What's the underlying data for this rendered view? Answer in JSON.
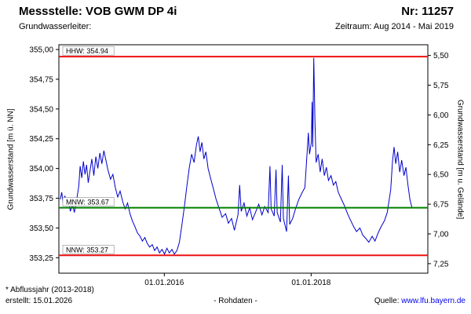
{
  "header": {
    "title": "Messstelle: VOB GWM DP 4i",
    "number_label": "Nr: 11257",
    "subtitle_left": "Grundwasserleiter:",
    "subtitle_right": "Zeitraum: Aug 2014 - Mai 2019"
  },
  "footer": {
    "note": "* Abflussjahr (2013-2018)",
    "created": "erstellt: 15.01.2026",
    "center": "- Rohdaten -",
    "source_label": "Quelle:",
    "source_link": "www.lfu.bayern.de"
  },
  "chart_data": {
    "type": "line",
    "title": "",
    "xlabel": "",
    "ylabel_left": "Grundwasserstand [m ü. NN]",
    "ylabel_right": "Grundwasserstand [m u. Gelände]",
    "grid": false,
    "legend": "none",
    "ylim_left": [
      353.12,
      355.04
    ],
    "right_axis_ground_elevation": 360.45,
    "x_domain": [
      "2014-07-25",
      "2019-08-05"
    ],
    "y_ticks_left": [
      [
        355.0,
        "355,00"
      ],
      [
        354.75,
        "354,75"
      ],
      [
        354.5,
        "354,50"
      ],
      [
        354.25,
        "354,25"
      ],
      [
        354.0,
        "354,00"
      ],
      [
        353.75,
        "353,75"
      ],
      [
        353.5,
        "353,50"
      ],
      [
        353.25,
        "353,25"
      ]
    ],
    "y_ticks_right": [
      [
        5.5,
        "5,50"
      ],
      [
        5.75,
        "5,75"
      ],
      [
        6.0,
        "6,00"
      ],
      [
        6.25,
        "6,25"
      ],
      [
        6.5,
        "6,50"
      ],
      [
        6.75,
        "6,75"
      ],
      [
        7.0,
        "7,00"
      ],
      [
        7.25,
        "7,25"
      ]
    ],
    "x_ticks": [
      {
        "date": "2016-01-01",
        "label": "01.01.2016"
      },
      {
        "date": "2018-01-01",
        "label": "01.01.2018"
      }
    ],
    "reference_lines": [
      {
        "name": "HHW",
        "label": "HHW: 354.94",
        "value": 354.94,
        "color": "#ee1111"
      },
      {
        "name": "MNW",
        "label": "MNW: 353.67",
        "value": 353.67,
        "color": "#008000"
      },
      {
        "name": "NNW",
        "label": "NNW: 353.27",
        "value": 353.27,
        "color": "#ee1111"
      }
    ],
    "series": [
      {
        "name": "Rohdaten",
        "color": "#0000cc",
        "points": [
          [
            "2014-08-01",
            353.74
          ],
          [
            "2014-08-08",
            353.8
          ],
          [
            "2014-08-16",
            353.7
          ],
          [
            "2014-08-24",
            353.77
          ],
          [
            "2014-09-01",
            353.68
          ],
          [
            "2014-09-10",
            353.74
          ],
          [
            "2014-09-20",
            353.64
          ],
          [
            "2014-10-01",
            353.7
          ],
          [
            "2014-10-10",
            353.63
          ],
          [
            "2014-10-20",
            353.72
          ],
          [
            "2014-11-01",
            353.85
          ],
          [
            "2014-11-08",
            354.02
          ],
          [
            "2014-11-16",
            353.92
          ],
          [
            "2014-11-24",
            354.06
          ],
          [
            "2014-12-02",
            353.95
          ],
          [
            "2014-12-10",
            354.03
          ],
          [
            "2014-12-18",
            353.88
          ],
          [
            "2014-12-26",
            353.97
          ],
          [
            "2015-01-05",
            354.08
          ],
          [
            "2015-01-15",
            353.94
          ],
          [
            "2015-01-25",
            354.1
          ],
          [
            "2015-02-04",
            354.0
          ],
          [
            "2015-02-14",
            354.13
          ],
          [
            "2015-02-24",
            354.04
          ],
          [
            "2015-03-06",
            354.15
          ],
          [
            "2015-03-16",
            354.07
          ],
          [
            "2015-03-26",
            353.99
          ],
          [
            "2015-04-08",
            353.91
          ],
          [
            "2015-04-20",
            353.95
          ],
          [
            "2015-05-02",
            353.84
          ],
          [
            "2015-05-14",
            353.76
          ],
          [
            "2015-05-26",
            353.81
          ],
          [
            "2015-06-08",
            353.72
          ],
          [
            "2015-06-20",
            353.66
          ],
          [
            "2015-07-02",
            353.71
          ],
          [
            "2015-07-14",
            353.62
          ],
          [
            "2015-07-26",
            353.56
          ],
          [
            "2015-08-08",
            353.51
          ],
          [
            "2015-08-20",
            353.46
          ],
          [
            "2015-09-02",
            353.43
          ],
          [
            "2015-09-14",
            353.39
          ],
          [
            "2015-09-26",
            353.42
          ],
          [
            "2015-10-08",
            353.37
          ],
          [
            "2015-10-20",
            353.34
          ],
          [
            "2015-11-02",
            353.36
          ],
          [
            "2015-11-14",
            353.31
          ],
          [
            "2015-11-26",
            353.34
          ],
          [
            "2015-12-08",
            353.29
          ],
          [
            "2015-12-20",
            353.32
          ],
          [
            "2016-01-02",
            353.28
          ],
          [
            "2016-01-14",
            353.33
          ],
          [
            "2016-01-26",
            353.29
          ],
          [
            "2016-02-08",
            353.32
          ],
          [
            "2016-02-20",
            353.28
          ],
          [
            "2016-03-04",
            353.31
          ],
          [
            "2016-03-16",
            353.38
          ],
          [
            "2016-03-28",
            353.52
          ],
          [
            "2016-04-10",
            353.68
          ],
          [
            "2016-04-22",
            353.85
          ],
          [
            "2016-05-04",
            354.0
          ],
          [
            "2016-05-16",
            354.12
          ],
          [
            "2016-05-28",
            354.05
          ],
          [
            "2016-06-09",
            354.2
          ],
          [
            "2016-06-18",
            354.27
          ],
          [
            "2016-06-27",
            354.14
          ],
          [
            "2016-07-06",
            354.22
          ],
          [
            "2016-07-16",
            354.08
          ],
          [
            "2016-07-26",
            354.14
          ],
          [
            "2016-08-06",
            354.0
          ],
          [
            "2016-08-18",
            353.92
          ],
          [
            "2016-09-01",
            353.83
          ],
          [
            "2016-09-15",
            353.74
          ],
          [
            "2016-10-01",
            353.66
          ],
          [
            "2016-10-15",
            353.59
          ],
          [
            "2016-11-01",
            353.62
          ],
          [
            "2016-11-15",
            353.54
          ],
          [
            "2016-12-01",
            353.58
          ],
          [
            "2016-12-15",
            353.48
          ],
          [
            "2017-01-02",
            353.61
          ],
          [
            "2017-01-10",
            353.86
          ],
          [
            "2017-01-18",
            353.64
          ],
          [
            "2017-02-01",
            353.71
          ],
          [
            "2017-02-15",
            353.6
          ],
          [
            "2017-03-01",
            353.67
          ],
          [
            "2017-03-15",
            353.57
          ],
          [
            "2017-04-01",
            353.64
          ],
          [
            "2017-04-15",
            353.7
          ],
          [
            "2017-05-01",
            353.61
          ],
          [
            "2017-05-15",
            353.68
          ],
          [
            "2017-06-01",
            353.63
          ],
          [
            "2017-06-10",
            354.02
          ],
          [
            "2017-06-16",
            353.66
          ],
          [
            "2017-07-01",
            353.6
          ],
          [
            "2017-07-10",
            353.99
          ],
          [
            "2017-07-16",
            353.63
          ],
          [
            "2017-08-01",
            353.55
          ],
          [
            "2017-08-10",
            354.03
          ],
          [
            "2017-08-16",
            353.58
          ],
          [
            "2017-09-01",
            353.47
          ],
          [
            "2017-09-10",
            353.94
          ],
          [
            "2017-09-16",
            353.53
          ],
          [
            "2017-10-01",
            353.58
          ],
          [
            "2017-10-15",
            353.66
          ],
          [
            "2017-11-01",
            353.74
          ],
          [
            "2017-11-15",
            353.79
          ],
          [
            "2017-12-01",
            353.84
          ],
          [
            "2017-12-10",
            354.08
          ],
          [
            "2017-12-18",
            354.3
          ],
          [
            "2017-12-24",
            354.12
          ],
          [
            "2018-01-02",
            354.22
          ],
          [
            "2018-01-06",
            354.56
          ],
          [
            "2018-01-09",
            354.18
          ],
          [
            "2018-01-14",
            354.93
          ],
          [
            "2018-01-20",
            354.4
          ],
          [
            "2018-01-26",
            354.05
          ],
          [
            "2018-02-05",
            354.12
          ],
          [
            "2018-02-15",
            353.97
          ],
          [
            "2018-02-25",
            354.08
          ],
          [
            "2018-03-08",
            353.94
          ],
          [
            "2018-03-18",
            354.01
          ],
          [
            "2018-03-28",
            353.9
          ],
          [
            "2018-04-10",
            353.94
          ],
          [
            "2018-04-22",
            353.86
          ],
          [
            "2018-05-04",
            353.89
          ],
          [
            "2018-05-16",
            353.8
          ],
          [
            "2018-06-01",
            353.74
          ],
          [
            "2018-06-15",
            353.69
          ],
          [
            "2018-07-01",
            353.62
          ],
          [
            "2018-07-15",
            353.57
          ],
          [
            "2018-08-01",
            353.51
          ],
          [
            "2018-08-15",
            353.47
          ],
          [
            "2018-09-01",
            353.5
          ],
          [
            "2018-09-15",
            353.44
          ],
          [
            "2018-10-01",
            353.41
          ],
          [
            "2018-10-15",
            353.38
          ],
          [
            "2018-11-01",
            353.43
          ],
          [
            "2018-11-15",
            353.39
          ],
          [
            "2018-12-01",
            353.46
          ],
          [
            "2018-12-15",
            353.51
          ],
          [
            "2019-01-01",
            353.56
          ],
          [
            "2019-01-15",
            353.63
          ],
          [
            "2019-02-01",
            353.82
          ],
          [
            "2019-02-10",
            354.06
          ],
          [
            "2019-02-18",
            354.18
          ],
          [
            "2019-02-26",
            354.04
          ],
          [
            "2019-03-08",
            354.14
          ],
          [
            "2019-03-18",
            353.97
          ],
          [
            "2019-03-28",
            354.07
          ],
          [
            "2019-04-08",
            353.94
          ],
          [
            "2019-04-18",
            354.01
          ],
          [
            "2019-04-28",
            353.86
          ],
          [
            "2019-05-08",
            353.74
          ],
          [
            "2019-05-18",
            353.67
          ]
        ]
      }
    ]
  }
}
